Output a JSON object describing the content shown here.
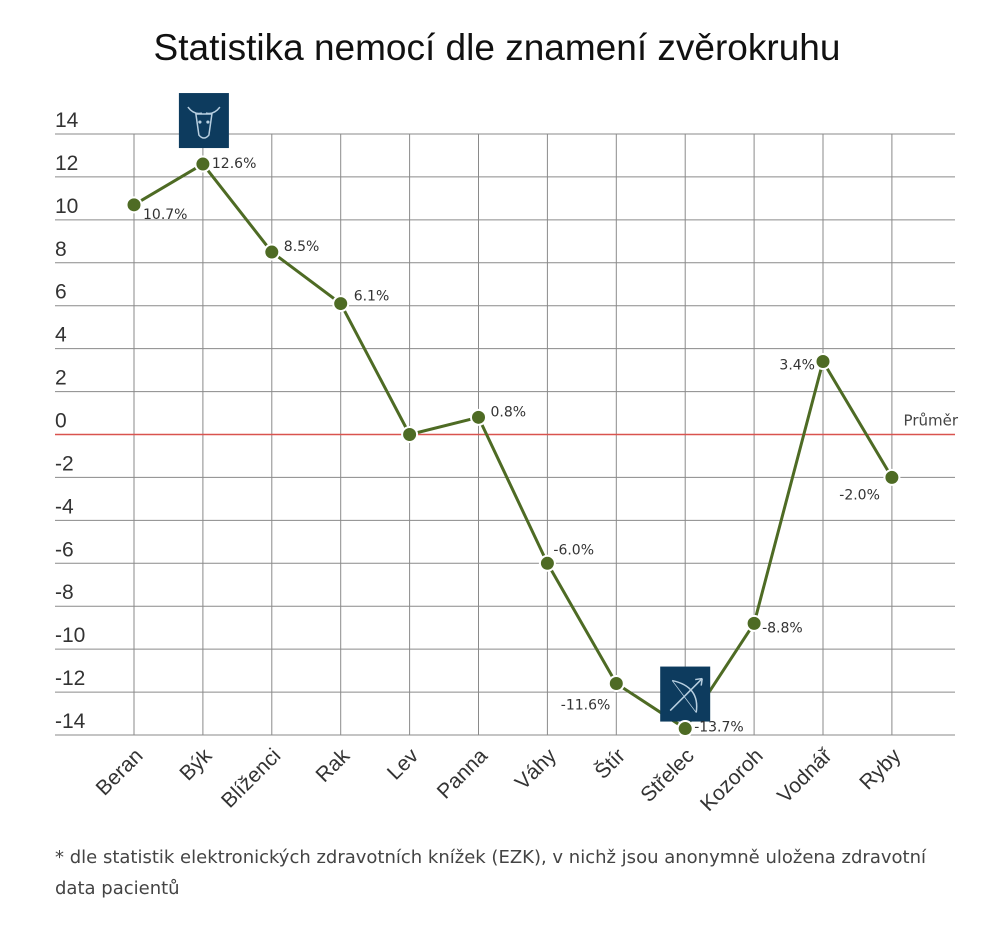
{
  "chart_data": {
    "type": "line",
    "title": "Statistika nemocí dle znamení zvěrokruhu",
    "categories": [
      "Beran",
      "Býk",
      "Blíženci",
      "Rak",
      "Lev",
      "Panna",
      "Váhy",
      "Štír",
      "Střelec",
      "Kozoroh",
      "Vodnář",
      "Ryby"
    ],
    "series": [
      {
        "values": [
          10.7,
          12.6,
          8.5,
          6.1,
          0,
          0.8,
          -6.0,
          -11.6,
          -13.7,
          -8.8,
          3.4,
          -2.0
        ]
      }
    ],
    "data_labels": [
      "10.7%",
      "12.6%",
      "8.5%",
      "6.1%",
      "",
      "0.8%",
      "-6.0%",
      "-11.6%",
      "-13.7%",
      "-8.8%",
      "3.4%",
      "-2.0%"
    ],
    "yticks": [
      14,
      12,
      10,
      8,
      6,
      4,
      2,
      0,
      -2,
      -4,
      -6,
      -8,
      -10,
      -12,
      -14
    ],
    "ylim": [
      -14,
      14
    ],
    "grid": true,
    "reference_line": {
      "value": 0,
      "label": "Průměr",
      "color": "#d9534f"
    },
    "line_color": "#4e6b24",
    "marker_color": "#4e6b24",
    "icon_color": "#0d3b5e",
    "icons": [
      {
        "category": "Býk",
        "name": "taurus-icon"
      },
      {
        "category": "Střelec",
        "name": "sagittarius-icon"
      }
    ]
  },
  "footnote": "* dle statistik elektronických zdravotních knížek (EZK), v nichž jsou anonymně uložena zdravotní data pacientů"
}
